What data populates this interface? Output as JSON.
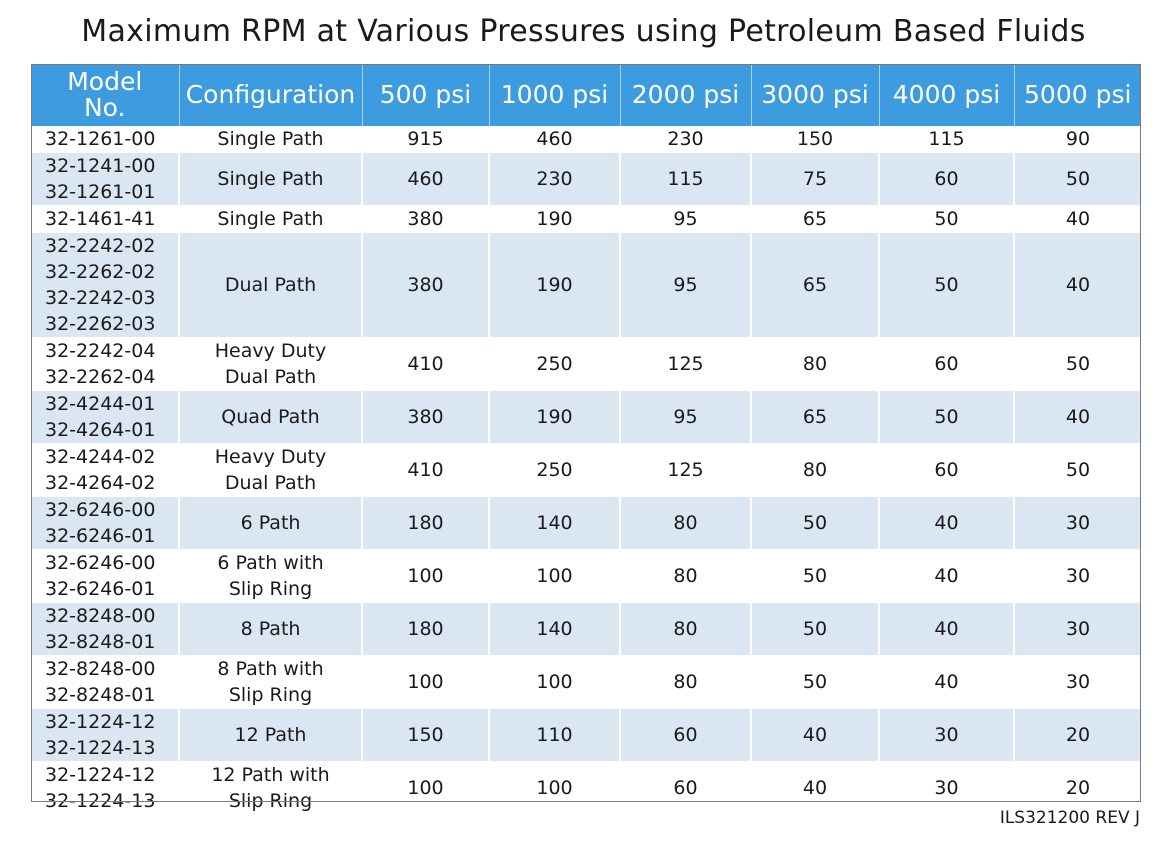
{
  "title": "Maximum RPM at Various Pressures using Petroleum Based Fluids",
  "colors": {
    "header_bg": "#3d9be0",
    "header_text": "#ffffff",
    "band_light": "#ffffff",
    "band_blue": "#dbe6f3"
  },
  "table": {
    "headers": {
      "model": [
        "Model",
        "No."
      ],
      "configuration": "Configuration",
      "pressures": [
        "500 psi",
        "1000 psi",
        "2000 psi",
        "3000 psi",
        "4000 psi",
        "5000 psi"
      ]
    },
    "rows": [
      {
        "models": [
          "32-1261-00"
        ],
        "config": [
          "Single Path"
        ],
        "rpm": [
          "915",
          "460",
          "230",
          "150",
          "115",
          "90"
        ]
      },
      {
        "models": [
          "32-1241-00",
          "32-1261-01"
        ],
        "config": [
          "Single Path"
        ],
        "rpm": [
          "460",
          "230",
          "115",
          "75",
          "60",
          "50"
        ]
      },
      {
        "models": [
          "32-1461-41"
        ],
        "config": [
          "Single Path"
        ],
        "rpm": [
          "380",
          "190",
          "95",
          "65",
          "50",
          "40"
        ]
      },
      {
        "models": [
          "32-2242-02",
          "32-2262-02",
          "32-2242-03",
          "32-2262-03"
        ],
        "config": [
          "Dual Path"
        ],
        "rpm": [
          "380",
          "190",
          "95",
          "65",
          "50",
          "40"
        ]
      },
      {
        "models": [
          "32-2242-04",
          "32-2262-04"
        ],
        "config": [
          "Heavy Duty",
          "Dual Path"
        ],
        "rpm": [
          "410",
          "250",
          "125",
          "80",
          "60",
          "50"
        ]
      },
      {
        "models": [
          "32-4244-01",
          "32-4264-01"
        ],
        "config": [
          "Quad Path"
        ],
        "rpm": [
          "380",
          "190",
          "95",
          "65",
          "50",
          "40"
        ]
      },
      {
        "models": [
          "32-4244-02",
          "32-4264-02"
        ],
        "config": [
          "Heavy Duty",
          "Dual Path"
        ],
        "rpm": [
          "410",
          "250",
          "125",
          "80",
          "60",
          "50"
        ]
      },
      {
        "models": [
          "32-6246-00",
          "32-6246-01"
        ],
        "config": [
          "6 Path"
        ],
        "rpm": [
          "180",
          "140",
          "80",
          "50",
          "40",
          "30"
        ]
      },
      {
        "models": [
          "32-6246-00",
          "32-6246-01"
        ],
        "config": [
          "6 Path with",
          "Slip Ring"
        ],
        "rpm": [
          "100",
          "100",
          "80",
          "50",
          "40",
          "30"
        ]
      },
      {
        "models": [
          "32-8248-00",
          "32-8248-01"
        ],
        "config": [
          "8 Path"
        ],
        "rpm": [
          "180",
          "140",
          "80",
          "50",
          "40",
          "30"
        ]
      },
      {
        "models": [
          "32-8248-00",
          "32-8248-01"
        ],
        "config": [
          "8 Path with",
          "Slip Ring"
        ],
        "rpm": [
          "100",
          "100",
          "80",
          "50",
          "40",
          "30"
        ]
      },
      {
        "models": [
          "32-1224-12",
          "32-1224-13"
        ],
        "config": [
          "12 Path"
        ],
        "rpm": [
          "150",
          "110",
          "60",
          "40",
          "30",
          "20"
        ]
      },
      {
        "models": [
          "32-1224-12",
          "32-1224-13"
        ],
        "config": [
          "12 Path with",
          "Slip Ring"
        ],
        "rpm": [
          "100",
          "100",
          "60",
          "40",
          "30",
          "20"
        ]
      }
    ]
  },
  "footer": "ILS321200 REV J"
}
